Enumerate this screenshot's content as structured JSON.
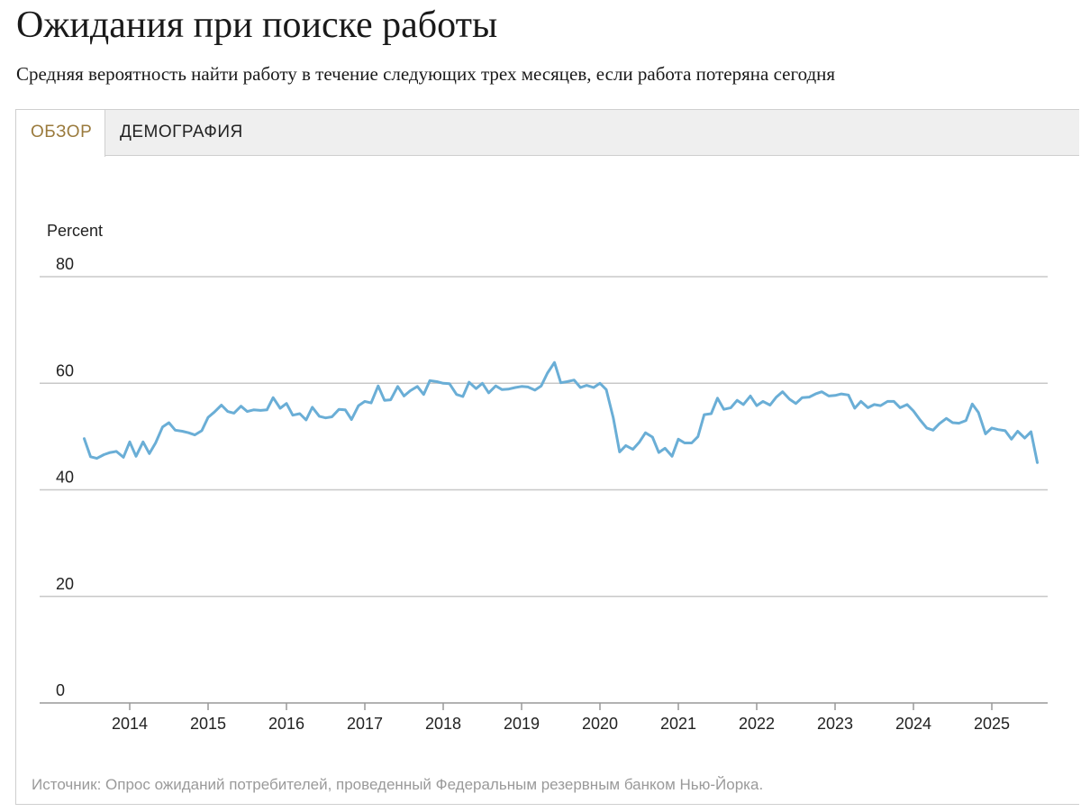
{
  "header": {
    "title": "Ожидания при поиске работы",
    "subtitle": "Средняя вероятность найти работу в течение следующих трех месяцев, если работа потеряна сегодня"
  },
  "tabs": [
    {
      "label": "ОБЗОР",
      "active": true
    },
    {
      "label": "ДЕМОГРАФИЯ",
      "active": false
    }
  ],
  "source": "Источник: Опрос ожиданий потребителей, проведенный Федеральным резервным банком Нью-Йорка.",
  "colors": {
    "line": "#6aaed6",
    "grid": "#c8c8c8",
    "active_tab": "#9a7a3c"
  },
  "chart_data": {
    "type": "line",
    "ylabel": "Percent",
    "ylim": [
      0,
      80
    ],
    "yticks": [
      "0",
      "20",
      "40",
      "60",
      "80"
    ],
    "xlim": [
      2013.0,
      2025.75
    ],
    "xticks": [
      "2014",
      "2015",
      "2016",
      "2017",
      "2018",
      "2019",
      "2020",
      "2021",
      "2022",
      "2023",
      "2024",
      "2025"
    ],
    "grid": true,
    "series": [
      {
        "name": "",
        "x": [
          2013.42,
          2013.5,
          2013.58,
          2013.67,
          2013.75,
          2013.83,
          2013.92,
          2014.0,
          2014.08,
          2014.17,
          2014.25,
          2014.33,
          2014.42,
          2014.5,
          2014.58,
          2014.67,
          2014.75,
          2014.83,
          2014.92,
          2015.0,
          2015.08,
          2015.17,
          2015.25,
          2015.33,
          2015.42,
          2015.5,
          2015.58,
          2015.67,
          2015.75,
          2015.83,
          2015.92,
          2016.0,
          2016.08,
          2016.17,
          2016.25,
          2016.33,
          2016.42,
          2016.5,
          2016.58,
          2016.67,
          2016.75,
          2016.83,
          2016.92,
          2017.0,
          2017.08,
          2017.17,
          2017.25,
          2017.33,
          2017.42,
          2017.5,
          2017.58,
          2017.67,
          2017.75,
          2017.83,
          2017.92,
          2018.0,
          2018.08,
          2018.17,
          2018.25,
          2018.33,
          2018.42,
          2018.5,
          2018.58,
          2018.67,
          2018.75,
          2018.83,
          2018.92,
          2019.0,
          2019.08,
          2019.17,
          2019.25,
          2019.33,
          2019.42,
          2019.5,
          2019.58,
          2019.67,
          2019.75,
          2019.83,
          2019.92,
          2020.0,
          2020.08,
          2020.17,
          2020.25,
          2020.33,
          2020.42,
          2020.5,
          2020.58,
          2020.67,
          2020.75,
          2020.83,
          2020.92,
          2021.0,
          2021.08,
          2021.17,
          2021.25,
          2021.33,
          2021.42,
          2021.5,
          2021.58,
          2021.67,
          2021.75,
          2021.83,
          2021.92,
          2022.0,
          2022.08,
          2022.17,
          2022.25,
          2022.33,
          2022.42,
          2022.5,
          2022.58,
          2022.67,
          2022.75,
          2022.83,
          2022.92,
          2023.0,
          2023.08,
          2023.17,
          2023.25,
          2023.33,
          2023.42,
          2023.5,
          2023.58,
          2023.67,
          2023.75,
          2023.83,
          2023.92,
          2024.0,
          2024.08,
          2024.17,
          2024.25,
          2024.33,
          2024.42,
          2024.5,
          2024.58,
          2024.67,
          2024.75,
          2024.83,
          2024.92,
          2025.0,
          2025.08,
          2025.17,
          2025.25,
          2025.33,
          2025.42,
          2025.5,
          2025.58
        ],
        "values": [
          49.6,
          46.2,
          45.9,
          46.6,
          47.0,
          47.2,
          46.1,
          49.0,
          46.3,
          49.0,
          46.8,
          48.8,
          51.8,
          52.6,
          51.2,
          51.0,
          50.7,
          50.3,
          51.1,
          53.6,
          54.6,
          55.9,
          54.7,
          54.4,
          55.7,
          54.7,
          55.0,
          54.9,
          55.0,
          57.3,
          55.3,
          56.2,
          54.0,
          54.3,
          53.1,
          55.5,
          53.8,
          53.5,
          53.7,
          55.1,
          55.0,
          53.2,
          55.8,
          56.6,
          56.3,
          59.5,
          56.8,
          56.9,
          59.4,
          57.6,
          58.6,
          59.4,
          57.9,
          60.5,
          60.3,
          60.0,
          59.9,
          57.9,
          57.5,
          60.2,
          59.0,
          60.0,
          58.2,
          59.5,
          58.8,
          58.9,
          59.2,
          59.4,
          59.3,
          58.7,
          59.5,
          61.9,
          63.9,
          60.1,
          60.3,
          60.6,
          59.2,
          59.6,
          59.2,
          60.0,
          58.8,
          53.5,
          47.1,
          48.3,
          47.6,
          48.9,
          50.7,
          49.9,
          47.0,
          47.8,
          46.3,
          49.5,
          48.8,
          48.8,
          50.0,
          54.1,
          54.3,
          57.2,
          55.1,
          55.4,
          56.8,
          56.0,
          57.6,
          55.8,
          56.6,
          55.9,
          57.4,
          58.4,
          57.0,
          56.2,
          57.3,
          57.4,
          58.0,
          58.4,
          57.6,
          57.7,
          58.0,
          57.8,
          55.3,
          56.6,
          55.4,
          56.0,
          55.8,
          56.6,
          56.6,
          55.4,
          56.0,
          54.8,
          53.2,
          51.6,
          51.2,
          52.4,
          53.4,
          52.6,
          52.5,
          53.0,
          56.1,
          54.5,
          50.5,
          51.6,
          51.3,
          51.1,
          49.5,
          51.0,
          49.7,
          50.9,
          45.1
        ]
      }
    ]
  }
}
